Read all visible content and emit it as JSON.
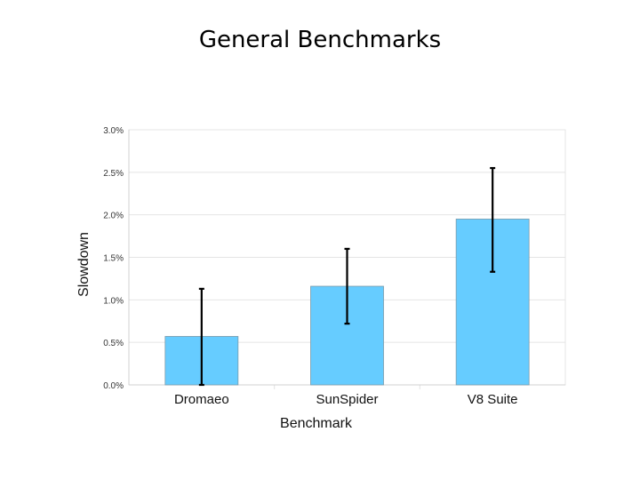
{
  "slide": {
    "title": "General Benchmarks"
  },
  "colors": {
    "bar_fill": "#66ccff",
    "bar_stroke": "#7a9aaa",
    "error_bar": "#000000",
    "grid": "#e4e4e4"
  },
  "chart_data": {
    "type": "bar",
    "title": "",
    "xlabel": "Benchmark",
    "ylabel": "Slowdown",
    "categories": [
      "Dromaeo",
      "SunSpider",
      "V8 Suite"
    ],
    "values": [
      0.57,
      1.16,
      1.95
    ],
    "error_low": [
      0.0,
      0.72,
      1.33
    ],
    "error_high": [
      1.13,
      1.6,
      2.55
    ],
    "ylim": [
      0,
      3.0
    ],
    "yticks": [
      0,
      0.5,
      1.0,
      1.5,
      2.0,
      2.5,
      3.0
    ],
    "ytick_labels": [
      "0.0%",
      "0.5%",
      "1.0%",
      "1.5%",
      "2.0%",
      "2.5%",
      "3.0%"
    ],
    "grid": true,
    "legend": "none"
  }
}
